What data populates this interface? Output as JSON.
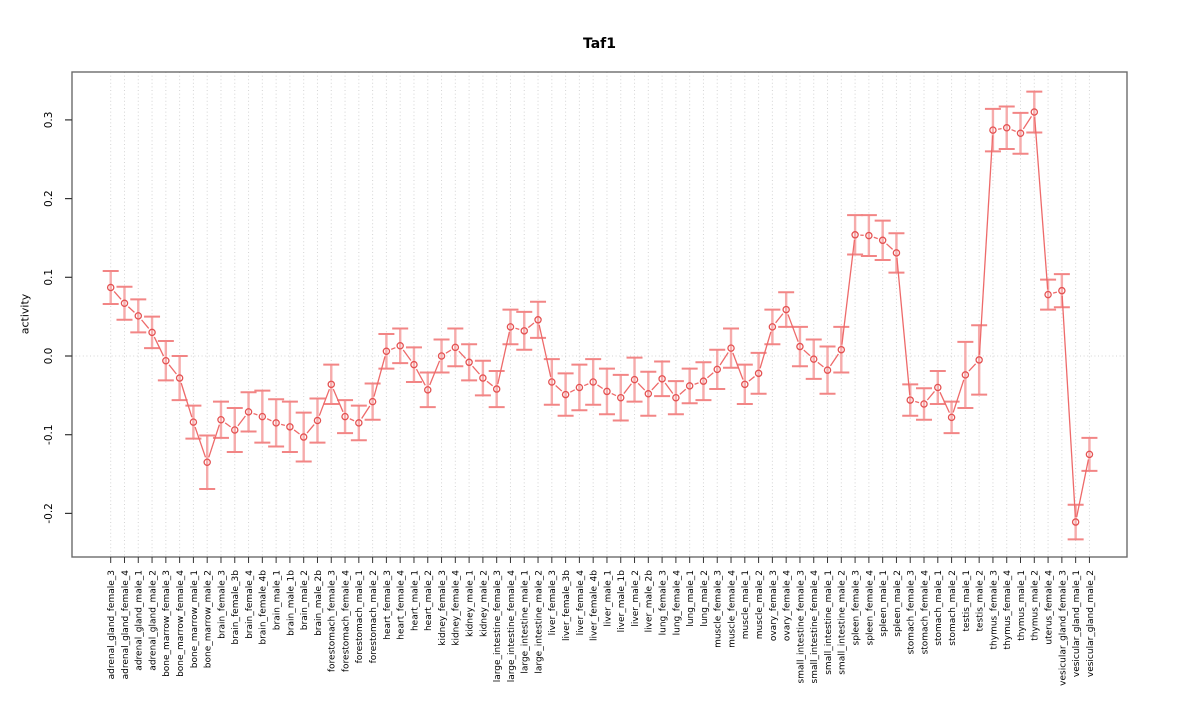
{
  "chart_data": {
    "type": "line",
    "title": "Taf1",
    "xlabel": "",
    "ylabel": "activity",
    "ylim": [
      -0.255,
      0.361
    ],
    "grid": "dotted vertical gridline at every category; dotted horizontal line at y=0",
    "legend_position": "none",
    "yticks": [
      {
        "label": "0.3",
        "value": 0.3
      },
      {
        "label": "0.2",
        "value": 0.2
      },
      {
        "label": "0.1",
        "value": 0.1
      },
      {
        "label": "0.0",
        "value": 0.0
      },
      {
        "label": "-0.1",
        "value": -0.1
      },
      {
        "label": "-0.2",
        "value": -0.2
      }
    ],
    "categories": [
      "adrenal_gland_female_3",
      "adrenal_gland_female_4",
      "adrenal_gland_male_1",
      "adrenal_gland_male_2",
      "bone_marrow_female_3",
      "bone_marrow_female_4",
      "bone_marrow_male_1",
      "bone_marrow_male_2",
      "brain_female_3",
      "brain_female_3b",
      "brain_female_4",
      "brain_female_4b",
      "brain_male_1",
      "brain_male_1b",
      "brain_male_2",
      "brain_male_2b",
      "forestomach_female_3",
      "forestomach_female_4",
      "forestomach_male_1",
      "forestomach_male_2",
      "heart_female_3",
      "heart_female_4",
      "heart_male_1",
      "heart_male_2",
      "kidney_female_3",
      "kidney_female_4",
      "kidney_male_1",
      "kidney_male_2",
      "large_intestine_female_3",
      "large_intestine_female_4",
      "large_intestine_male_1",
      "large_intestine_male_2",
      "liver_female_3",
      "liver_female_3b",
      "liver_female_4",
      "liver_female_4b",
      "liver_male_1",
      "liver_male_1b",
      "liver_male_2",
      "liver_male_2b",
      "lung_female_3",
      "lung_female_4",
      "lung_male_1",
      "lung_male_2",
      "muscle_female_3",
      "muscle_female_4",
      "muscle_male_1",
      "muscle_male_2",
      "ovary_female_3",
      "ovary_female_4",
      "small_intestine_female_3",
      "small_intestine_female_4",
      "small_intestine_male_1",
      "small_intestine_male_2",
      "spleen_female_3",
      "spleen_female_4",
      "spleen_male_1",
      "spleen_male_2",
      "stomach_female_3",
      "stomach_female_4",
      "stomach_male_1",
      "stomach_male_2",
      "testis_male_1",
      "testis_male_2",
      "thymus_female_3",
      "thymus_female_4",
      "thymus_male_1",
      "thymus_male_2",
      "uterus_female_4",
      "vesicular_gland_female_3",
      "vesicular_gland_male_1",
      "vesicular_gland_male_2"
    ],
    "series": [
      {
        "name": "activity",
        "marker": "open-circle",
        "values": [
          0.087,
          0.067,
          0.051,
          0.03,
          -0.006,
          -0.028,
          -0.084,
          -0.135,
          -0.081,
          -0.094,
          -0.071,
          -0.077,
          -0.085,
          -0.09,
          -0.103,
          -0.082,
          -0.036,
          -0.077,
          -0.085,
          -0.058,
          0.006,
          0.013,
          -0.011,
          -0.043,
          0.0,
          0.011,
          -0.008,
          -0.028,
          -0.042,
          0.037,
          0.032,
          0.046,
          -0.033,
          -0.049,
          -0.04,
          -0.033,
          -0.045,
          -0.053,
          -0.03,
          -0.048,
          -0.029,
          -0.053,
          -0.038,
          -0.032,
          -0.017,
          0.01,
          -0.036,
          -0.022,
          0.037,
          0.059,
          0.012,
          -0.004,
          -0.018,
          0.008,
          0.154,
          0.153,
          0.147,
          0.131,
          -0.056,
          -0.061,
          -0.04,
          -0.078,
          -0.024,
          -0.005,
          0.287,
          0.29,
          0.283,
          0.31,
          0.078,
          0.083,
          -0.211,
          -0.125
        ],
        "errors": [
          0.021,
          0.021,
          0.021,
          0.02,
          0.025,
          0.028,
          0.021,
          0.034,
          0.023,
          0.028,
          0.025,
          0.033,
          0.03,
          0.032,
          0.031,
          0.028,
          0.025,
          0.021,
          0.022,
          0.023,
          0.022,
          0.022,
          0.022,
          0.022,
          0.021,
          0.024,
          0.023,
          0.022,
          0.023,
          0.022,
          0.024,
          0.023,
          0.029,
          0.027,
          0.029,
          0.029,
          0.029,
          0.029,
          0.028,
          0.028,
          0.022,
          0.021,
          0.022,
          0.024,
          0.025,
          0.025,
          0.025,
          0.026,
          0.022,
          0.022,
          0.025,
          0.025,
          0.03,
          0.029,
          0.025,
          0.026,
          0.025,
          0.025,
          0.02,
          0.02,
          0.021,
          0.02,
          0.042,
          0.044,
          0.027,
          0.027,
          0.026,
          0.026,
          0.019,
          0.021,
          0.022,
          0.021
        ]
      }
    ],
    "colors": {
      "point": "#e45252",
      "line": "#ee6a6a",
      "error_bar": "#f6abab",
      "error_cap": "#f28585",
      "grid": "#d4d4d4",
      "box": "#6b6b6b",
      "tick": "#333333",
      "text": "#000000",
      "background": "#ffffff"
    }
  }
}
